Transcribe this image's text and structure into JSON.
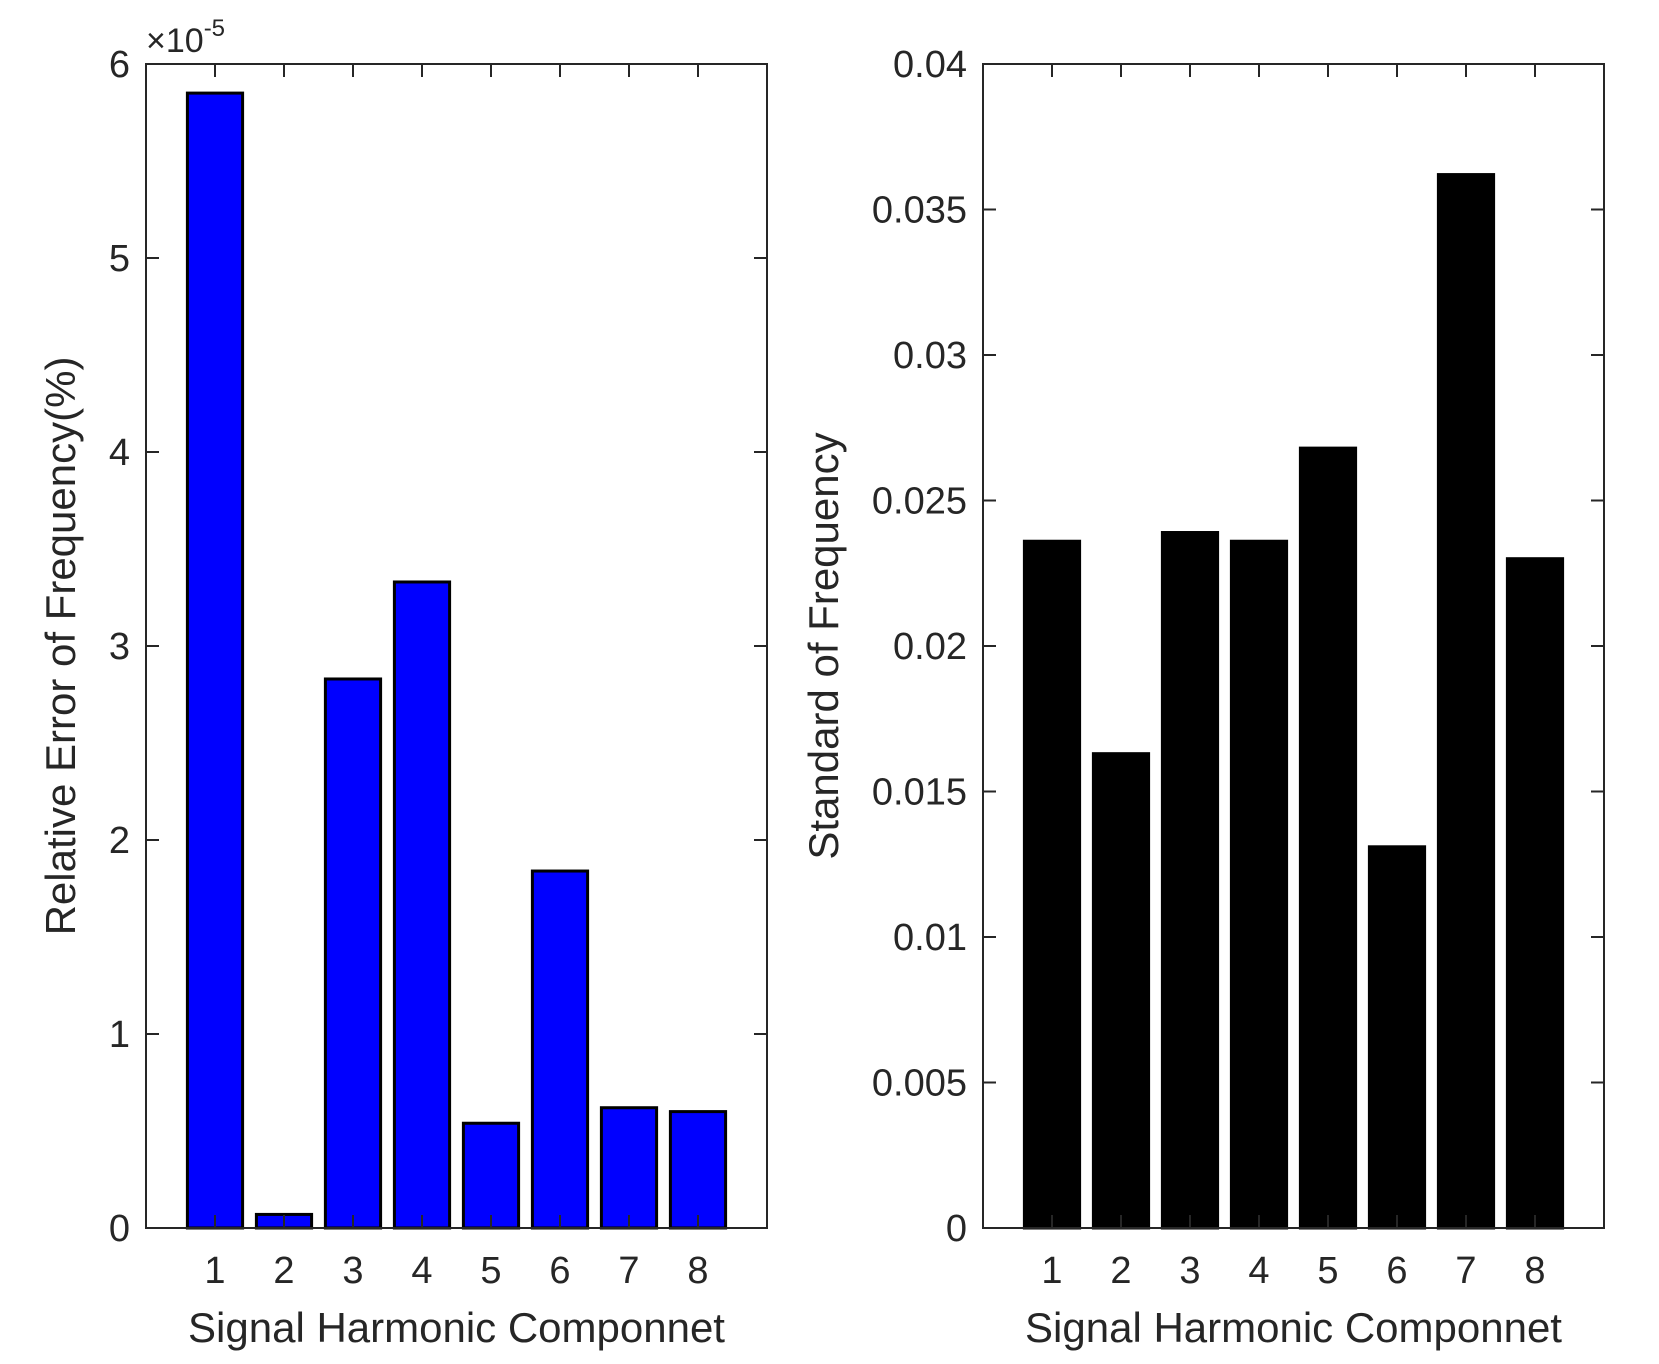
{
  "chart_data": [
    {
      "type": "bar",
      "categories": [
        "1",
        "2",
        "3",
        "4",
        "5",
        "6",
        "7",
        "8"
      ],
      "values": [
        5.85e-05,
        7e-07,
        2.83e-05,
        3.33e-05,
        5.4e-06,
        1.84e-05,
        6.2e-06,
        6e-06
      ],
      "title": "",
      "xlabel": "Signal Harmonic Componnet",
      "ylabel": "Relative Error of Frequency(%)",
      "ylim": [
        0,
        6e-05
      ],
      "yticks": [
        "0",
        "1",
        "2",
        "3",
        "4",
        "5",
        "6"
      ],
      "exponent_label": "×10",
      "exponent_power": "-5",
      "bar_color": "#0000ff",
      "grid": false,
      "legend": "none"
    },
    {
      "type": "bar",
      "categories": [
        "1",
        "2",
        "3",
        "4",
        "5",
        "6",
        "7",
        "8"
      ],
      "values": [
        0.0236,
        0.0163,
        0.0239,
        0.0236,
        0.0268,
        0.0131,
        0.0362,
        0.023
      ],
      "title": "",
      "xlabel": "Signal Harmonic Componnet",
      "ylabel": "Standard of Frequency",
      "ylim": [
        0,
        0.04
      ],
      "yticks": [
        "0",
        "0.005",
        "0.01",
        "0.015",
        "0.02",
        "0.025",
        "0.03",
        "0.035",
        "0.04"
      ],
      "bar_color": "#000000",
      "grid": false,
      "legend": "none"
    }
  ]
}
